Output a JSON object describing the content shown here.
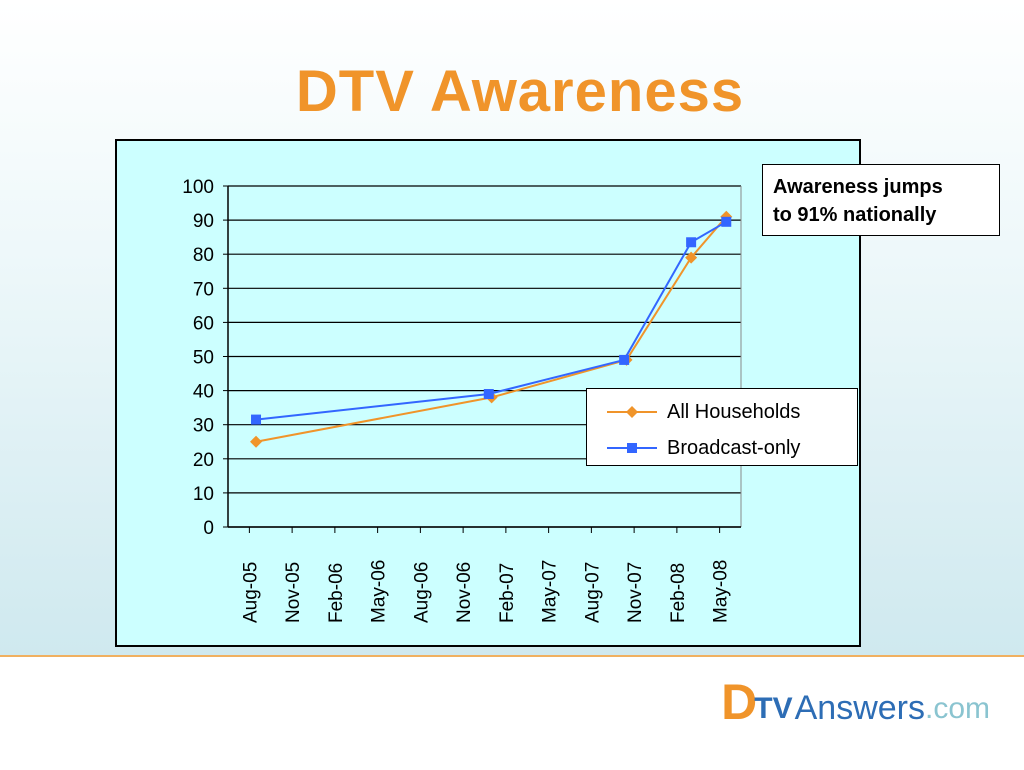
{
  "slide": {
    "title": "DTV Awareness",
    "callout_line1": "Awareness jumps",
    "callout_line2": "to 91% nationally",
    "logo": {
      "d": "D",
      "tv": "TV",
      "answers": "Answers",
      "com": ".com"
    },
    "colors": {
      "title": "#f0942a",
      "plot_bg": "#ccffff",
      "footer_rule": "#f0b060",
      "logo_orange": "#f0942a",
      "logo_blue": "#2d6db5"
    }
  },
  "chart_data": {
    "type": "line",
    "title": "",
    "xlabel": "",
    "ylabel": "",
    "ylim": [
      0,
      100
    ],
    "yticks": [
      0,
      10,
      20,
      30,
      40,
      50,
      60,
      70,
      80,
      90,
      100
    ],
    "xticks": [
      "Aug-05",
      "Nov-05",
      "Feb-06",
      "May-06",
      "Aug-06",
      "Nov-06",
      "Feb-07",
      "May-07",
      "Aug-07",
      "Nov-07",
      "Feb-08",
      "May-08"
    ],
    "grid": true,
    "legend": "right",
    "series": [
      {
        "name": "All Households",
        "color": "#f0942a",
        "marker": "diamond",
        "points": [
          {
            "x": "2005-08-15",
            "y": 25
          },
          {
            "x": "2007-01-01",
            "y": 38
          },
          {
            "x": "2007-10-15",
            "y": 49
          },
          {
            "x": "2008-03-01",
            "y": 79
          },
          {
            "x": "2008-05-15",
            "y": 91
          }
        ]
      },
      {
        "name": "Broadcast-only",
        "color": "#3366ff",
        "marker": "square",
        "points": [
          {
            "x": "2005-08-15",
            "y": 31.5
          },
          {
            "x": "2006-12-25",
            "y": 39
          },
          {
            "x": "2007-10-10",
            "y": 49
          },
          {
            "x": "2008-03-01",
            "y": 83.5
          },
          {
            "x": "2008-05-15",
            "y": 89.5
          }
        ]
      }
    ]
  }
}
